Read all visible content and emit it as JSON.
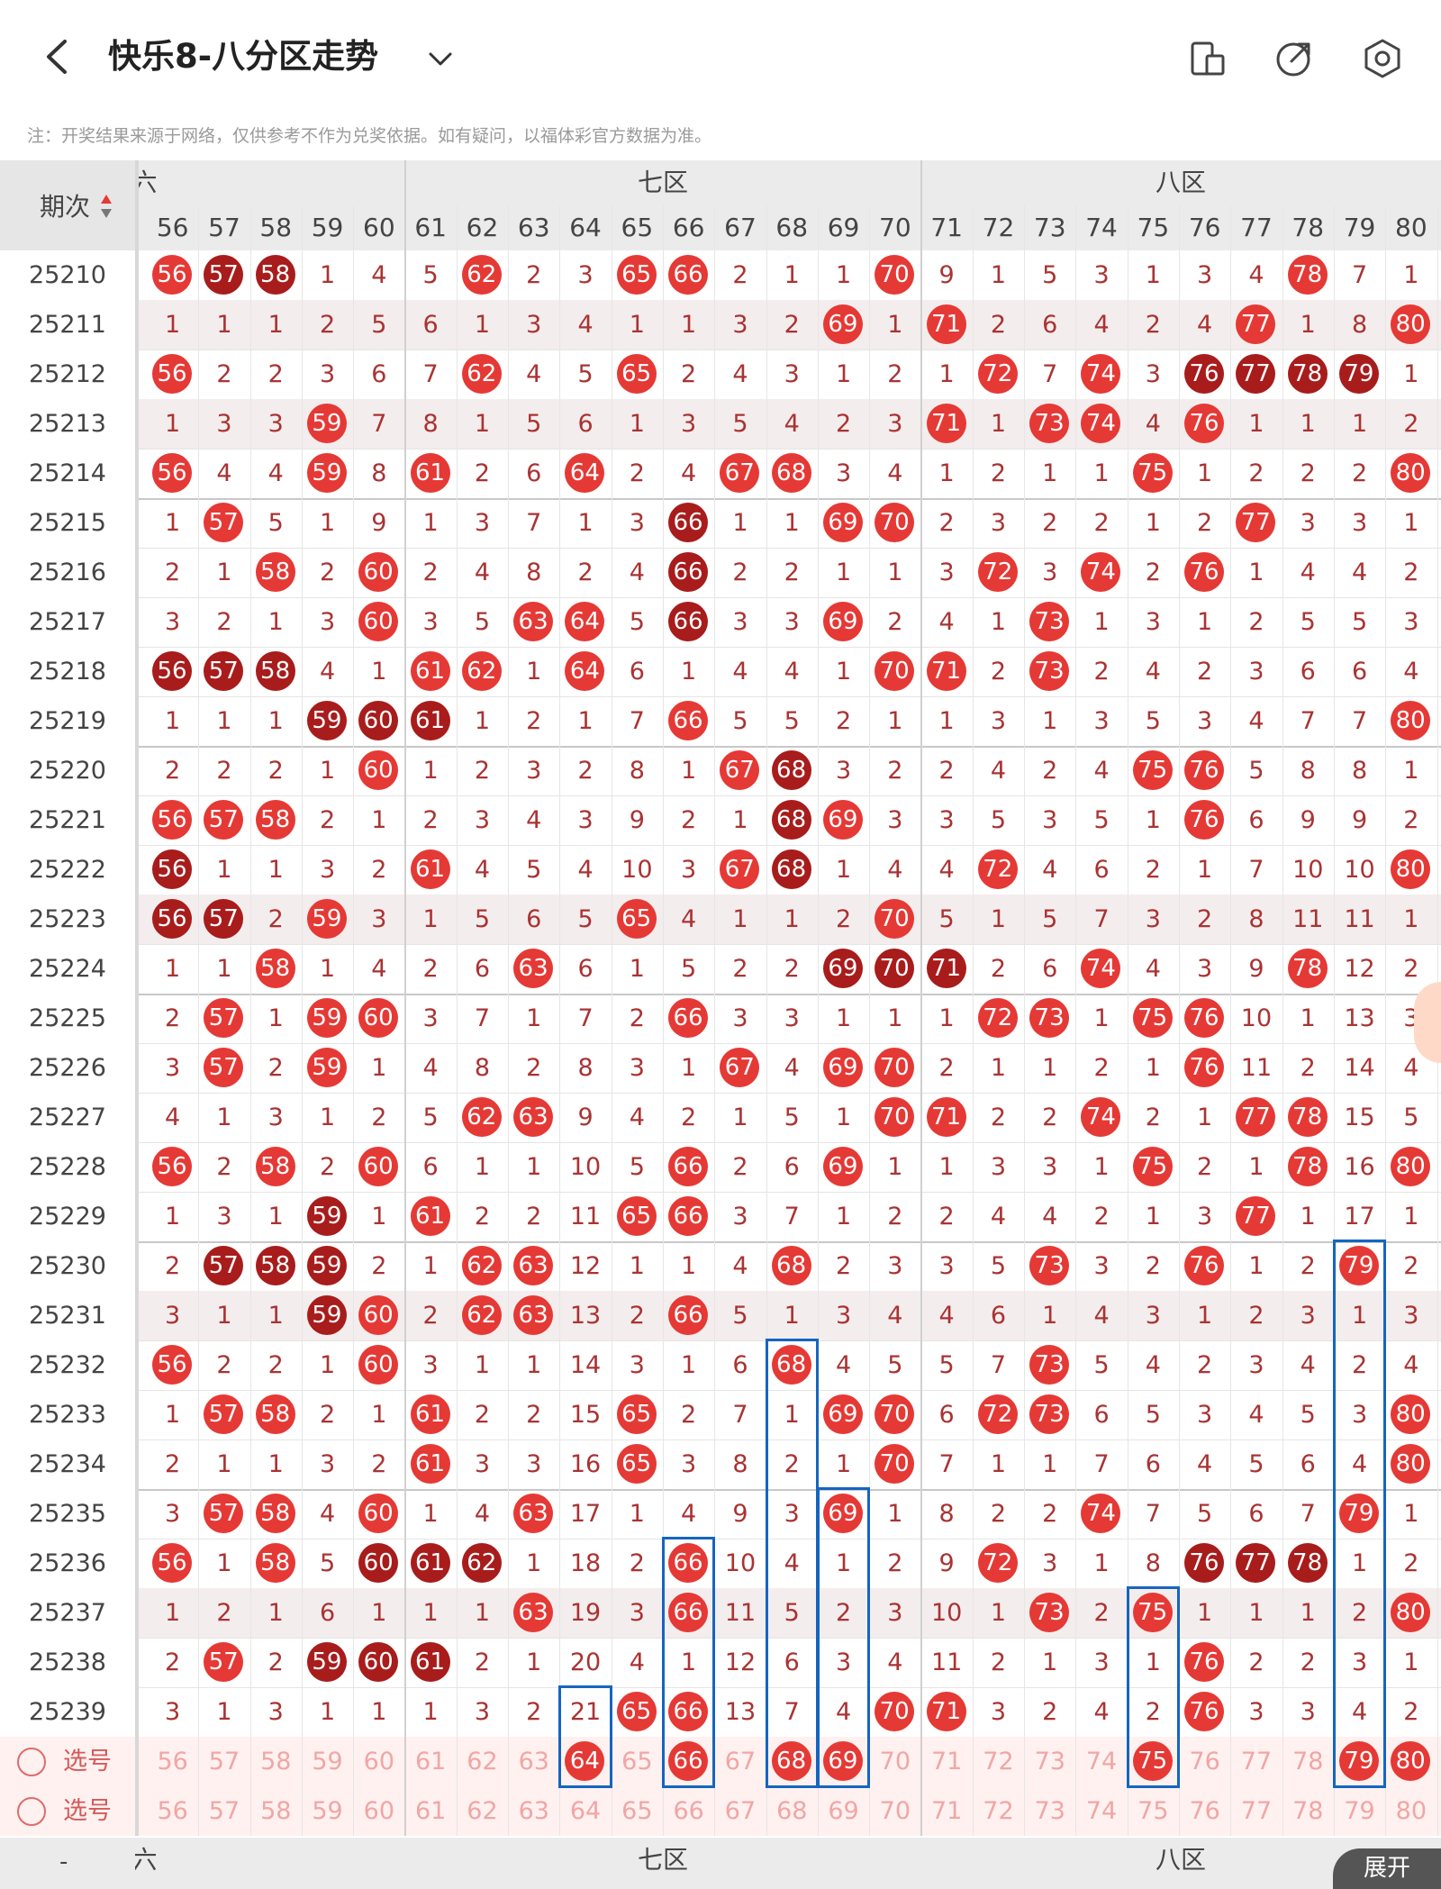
{
  "header": {
    "title": "快乐8-八分区走势",
    "note": "注：开奖结果来源于网络，仅供参考不作为兑奖依据。如有疑问，以福体彩官方数据为准。"
  },
  "table": {
    "period_header": "期次",
    "zones": [
      "六区",
      "七区",
      "八区"
    ],
    "zones_footer": [
      "六区",
      "七区",
      "八区"
    ],
    "columns": [
      56,
      57,
      58,
      59,
      60,
      61,
      62,
      63,
      64,
      65,
      66,
      67,
      68,
      69,
      70,
      71,
      72,
      73,
      74,
      75,
      76,
      77,
      78,
      79,
      80
    ],
    "rows": [
      {
        "period": "25210",
        "cells": [
          "56r",
          "57d",
          "58d",
          1,
          4,
          5,
          "62r",
          2,
          3,
          "65r",
          "66r",
          2,
          1,
          1,
          "70r",
          9,
          1,
          5,
          3,
          1,
          3,
          4,
          "78r",
          7,
          1
        ]
      },
      {
        "period": "25211",
        "cells": [
          1,
          1,
          1,
          2,
          5,
          6,
          1,
          3,
          4,
          1,
          1,
          3,
          2,
          "69r",
          1,
          "71r",
          2,
          6,
          4,
          2,
          4,
          "77r",
          1,
          8,
          "80r"
        ]
      },
      {
        "period": "25212",
        "cells": [
          "56r",
          2,
          2,
          3,
          6,
          7,
          "62r",
          4,
          5,
          "65r",
          2,
          4,
          3,
          1,
          2,
          1,
          "72r",
          7,
          "74r",
          3,
          "76d",
          "77d",
          "78d",
          "79d",
          1
        ]
      },
      {
        "period": "25213",
        "cells": [
          1,
          3,
          3,
          "59r",
          7,
          8,
          1,
          5,
          6,
          1,
          3,
          5,
          4,
          2,
          3,
          "71r",
          1,
          "73r",
          "74r",
          4,
          "76r",
          1,
          1,
          1,
          2
        ]
      },
      {
        "period": "25214",
        "cells": [
          "56r",
          4,
          4,
          "59r",
          8,
          "61r",
          2,
          6,
          "64r",
          2,
          4,
          "67r",
          "68r",
          3,
          4,
          1,
          2,
          1,
          1,
          "75r",
          1,
          2,
          2,
          2,
          "80r"
        ]
      },
      {
        "period": "25215",
        "cells": [
          1,
          "57r",
          5,
          1,
          9,
          1,
          3,
          7,
          1,
          3,
          "66d",
          1,
          1,
          "69r",
          "70r",
          2,
          3,
          2,
          2,
          1,
          2,
          "77r",
          3,
          3,
          1
        ]
      },
      {
        "period": "25216",
        "cells": [
          2,
          1,
          "58r",
          2,
          "60r",
          2,
          4,
          8,
          2,
          4,
          "66d",
          2,
          2,
          1,
          1,
          3,
          "72r",
          3,
          "74r",
          2,
          "76r",
          1,
          4,
          4,
          2
        ]
      },
      {
        "period": "25217",
        "cells": [
          3,
          2,
          1,
          3,
          "60r",
          3,
          5,
          "63r",
          "64r",
          5,
          "66d",
          3,
          3,
          "69r",
          2,
          4,
          1,
          "73r",
          1,
          3,
          1,
          2,
          5,
          5,
          3
        ]
      },
      {
        "period": "25218",
        "cells": [
          "56d",
          "57d",
          "58d",
          4,
          1,
          "61r",
          "62r",
          1,
          "64r",
          6,
          1,
          4,
          4,
          1,
          "70r",
          "71r",
          2,
          "73r",
          2,
          4,
          2,
          3,
          6,
          6,
          4
        ]
      },
      {
        "period": "25219",
        "cells": [
          1,
          1,
          1,
          "59d",
          "60d",
          "61d",
          1,
          2,
          1,
          7,
          "66r",
          5,
          5,
          2,
          1,
          1,
          3,
          1,
          3,
          5,
          3,
          4,
          7,
          7,
          "80r"
        ]
      },
      {
        "period": "25220",
        "cells": [
          2,
          2,
          2,
          1,
          "60r",
          1,
          2,
          3,
          2,
          8,
          1,
          "67r",
          "68d",
          3,
          2,
          2,
          4,
          2,
          4,
          "75r",
          "76r",
          5,
          8,
          8,
          1
        ]
      },
      {
        "period": "25221",
        "cells": [
          "56r",
          "57r",
          "58r",
          2,
          1,
          2,
          3,
          4,
          3,
          9,
          2,
          1,
          "68d",
          "69r",
          3,
          3,
          5,
          3,
          5,
          1,
          "76r",
          6,
          9,
          9,
          2
        ]
      },
      {
        "period": "25222",
        "cells": [
          "56d",
          1,
          1,
          3,
          2,
          "61r",
          4,
          5,
          4,
          10,
          3,
          "67r",
          "68d",
          1,
          4,
          4,
          "72r",
          4,
          6,
          2,
          1,
          7,
          10,
          10,
          "80r"
        ]
      },
      {
        "period": "25223",
        "cells": [
          "56d",
          "57d",
          2,
          "59r",
          3,
          1,
          5,
          6,
          5,
          "65r",
          4,
          1,
          1,
          2,
          "70r",
          5,
          1,
          5,
          7,
          3,
          2,
          8,
          11,
          11,
          1
        ]
      },
      {
        "period": "25224",
        "cells": [
          1,
          1,
          "58r",
          1,
          4,
          2,
          6,
          "63r",
          6,
          1,
          5,
          2,
          2,
          "69d",
          "70d",
          "71d",
          2,
          6,
          "74r",
          4,
          3,
          9,
          "78r",
          12,
          2
        ]
      },
      {
        "period": "25225",
        "cells": [
          2,
          "57r",
          1,
          "59r",
          "60r",
          3,
          7,
          1,
          7,
          2,
          "66r",
          3,
          3,
          1,
          1,
          1,
          "72r",
          "73r",
          1,
          "75r",
          "76r",
          10,
          1,
          13,
          3
        ]
      },
      {
        "period": "25226",
        "cells": [
          3,
          "57r",
          2,
          "59r",
          1,
          4,
          8,
          2,
          8,
          3,
          1,
          "67r",
          4,
          "69r",
          "70r",
          2,
          1,
          1,
          2,
          1,
          "76r",
          11,
          2,
          14,
          4
        ]
      },
      {
        "period": "25227",
        "cells": [
          4,
          1,
          3,
          1,
          2,
          5,
          "62r",
          "63r",
          9,
          4,
          2,
          1,
          5,
          1,
          "70r",
          "71r",
          2,
          2,
          "74r",
          2,
          1,
          "77r",
          "78r",
          15,
          5
        ]
      },
      {
        "period": "25228",
        "cells": [
          "56r",
          2,
          "58r",
          2,
          "60r",
          6,
          1,
          1,
          10,
          5,
          "66r",
          2,
          6,
          "69r",
          1,
          1,
          3,
          3,
          1,
          "75r",
          2,
          1,
          "78r",
          16,
          "80r"
        ]
      },
      {
        "period": "25229",
        "cells": [
          1,
          3,
          1,
          "59d",
          1,
          "61r",
          2,
          2,
          11,
          "65r",
          "66r",
          3,
          7,
          1,
          2,
          2,
          4,
          4,
          2,
          1,
          3,
          "77r",
          1,
          17,
          1
        ]
      },
      {
        "period": "25230",
        "cells": [
          2,
          "57d",
          "58d",
          "59d",
          2,
          1,
          "62r",
          "63r",
          12,
          1,
          1,
          4,
          "68r",
          2,
          3,
          3,
          5,
          "73r",
          3,
          2,
          "76r",
          1,
          2,
          "79r",
          2
        ]
      },
      {
        "period": "25231",
        "cells": [
          3,
          1,
          1,
          "59d",
          "60r",
          2,
          "62r",
          "63r",
          13,
          2,
          "66r",
          5,
          1,
          3,
          4,
          4,
          6,
          1,
          4,
          3,
          1,
          2,
          3,
          1,
          3
        ]
      },
      {
        "period": "25232",
        "cells": [
          "56r",
          2,
          2,
          1,
          "60r",
          3,
          1,
          1,
          14,
          3,
          1,
          6,
          "68r",
          4,
          5,
          5,
          7,
          "73r",
          5,
          4,
          2,
          3,
          4,
          2,
          4
        ]
      },
      {
        "period": "25233",
        "cells": [
          1,
          "57r",
          "58r",
          2,
          1,
          "61r",
          2,
          2,
          15,
          "65r",
          2,
          7,
          1,
          "69r",
          "70r",
          6,
          "72r",
          "73r",
          6,
          5,
          3,
          4,
          5,
          3,
          "80r"
        ]
      },
      {
        "period": "25234",
        "cells": [
          2,
          1,
          1,
          3,
          2,
          "61r",
          3,
          3,
          16,
          "65r",
          3,
          8,
          2,
          1,
          "70r",
          7,
          1,
          1,
          7,
          6,
          4,
          5,
          6,
          4,
          "80r"
        ]
      },
      {
        "period": "25235",
        "cells": [
          3,
          "57r",
          "58r",
          4,
          "60r",
          1,
          4,
          "63r",
          17,
          1,
          4,
          9,
          3,
          "69r",
          1,
          8,
          2,
          2,
          "74r",
          7,
          5,
          6,
          7,
          "79r",
          1
        ]
      },
      {
        "period": "25236",
        "cells": [
          "56r",
          1,
          "58r",
          5,
          "60d",
          "61d",
          "62d",
          1,
          18,
          2,
          "66r",
          10,
          4,
          1,
          2,
          9,
          "72r",
          3,
          1,
          8,
          "76d",
          "77d",
          "78d",
          1,
          2
        ]
      },
      {
        "period": "25237",
        "cells": [
          1,
          2,
          1,
          6,
          1,
          1,
          1,
          "63r",
          19,
          3,
          "66r",
          11,
          5,
          2,
          3,
          10,
          1,
          "73r",
          2,
          "75r",
          1,
          1,
          1,
          2,
          "80r"
        ]
      },
      {
        "period": "25238",
        "cells": [
          2,
          "57r",
          2,
          "59d",
          "60d",
          "61d",
          2,
          1,
          20,
          4,
          1,
          12,
          6,
          3,
          4,
          11,
          2,
          1,
          3,
          1,
          "76r",
          2,
          2,
          3,
          1
        ]
      },
      {
        "period": "25239",
        "cells": [
          3,
          1,
          3,
          1,
          1,
          1,
          3,
          2,
          21,
          "65r",
          "66r",
          13,
          7,
          4,
          "70r",
          "71r",
          3,
          2,
          4,
          2,
          "76r",
          3,
          3,
          4,
          2
        ]
      }
    ],
    "select_label": "选号",
    "select_row_1": [
      "56",
      "57",
      "58",
      "59",
      "60",
      "61",
      "62",
      "63",
      "64",
      "65",
      "66",
      "67",
      "68",
      "69",
      "70",
      "71",
      "72",
      "73",
      "74",
      "75",
      "76",
      "77",
      "78",
      "79",
      "80"
    ],
    "select_row_1_hits": [
      "64",
      "66",
      "68",
      "69",
      "75",
      "79",
      "80"
    ],
    "select_row_2": [
      "56",
      "57",
      "58",
      "59",
      "60",
      "61",
      "62",
      "63",
      "64",
      "65",
      "66",
      "67",
      "68",
      "69",
      "70",
      "71",
      "72",
      "73",
      "74",
      "75",
      "76",
      "77",
      "78",
      "79",
      "80"
    ]
  },
  "footer": {
    "expand_label": "展开",
    "left_mark": "-"
  },
  "colors": {
    "ball_red": "#e53935",
    "ball_dark": "#a81c1c",
    "box_blue": "#1565c0",
    "number_text": "#a33333"
  }
}
